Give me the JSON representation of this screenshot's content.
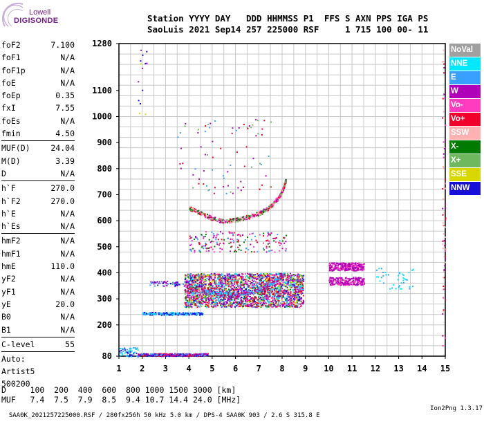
{
  "logo": {
    "line1": "Lowell",
    "line2": "DIGISONDE"
  },
  "header": {
    "line1": "Station YYYY DAY   DDD HHMMSS P1  FFS S AXN PPS IGA PS",
    "line2": "SaoLuis 2021 Sep14 257 225000 RSF     1 715 100 00- 11"
  },
  "params_group1": [
    {
      "name": "foF2",
      "value": "7.100"
    },
    {
      "name": "foF1",
      "value": "N/A"
    },
    {
      "name": "foF1p",
      "value": "N/A"
    },
    {
      "name": "foE",
      "value": "N/A"
    },
    {
      "name": "foEp",
      "value": "0.35"
    },
    {
      "name": "fxI",
      "value": "7.55"
    },
    {
      "name": "foEs",
      "value": "N/A"
    },
    {
      "name": "fmin",
      "value": "4.50"
    }
  ],
  "params_group2": [
    {
      "name": "MUF(D)",
      "value": "24.04"
    },
    {
      "name": "M(D)",
      "value": "3.39"
    },
    {
      "name": "D",
      "value": "N/A"
    }
  ],
  "params_group3": [
    {
      "name": "h`F",
      "value": "270.0"
    },
    {
      "name": "h`F2",
      "value": "270.0"
    },
    {
      "name": "h`E",
      "value": "N/A"
    },
    {
      "name": "h`Es",
      "value": "N/A"
    }
  ],
  "params_group4": [
    {
      "name": "hmF2",
      "value": "N/A"
    },
    {
      "name": "hmF1",
      "value": "N/A"
    },
    {
      "name": "hmE",
      "value": "110.0"
    },
    {
      "name": "yF2",
      "value": "N/A"
    },
    {
      "name": "yF1",
      "value": "N/A"
    },
    {
      "name": "yE",
      "value": "20.0"
    },
    {
      "name": "B0",
      "value": "N/A"
    },
    {
      "name": "B1",
      "value": "N/A"
    }
  ],
  "params_group5": [
    {
      "name": "C-level",
      "value": "55"
    }
  ],
  "autoscaling": {
    "line1": "Auto:",
    "line2": "Artist5",
    "line3": "500200"
  },
  "legend": [
    {
      "label": "NoVal",
      "color": "#a0a0a0"
    },
    {
      "label": "NNE",
      "color": "#00e8ff"
    },
    {
      "label": "E",
      "color": "#3aa0ff"
    },
    {
      "label": "W",
      "color": "#b000b8"
    },
    {
      "label": "Vo-",
      "color": "#ff3cc0"
    },
    {
      "label": "Vo+",
      "color": "#f0002a"
    },
    {
      "label": "SSW",
      "color": "#ffb0b0"
    },
    {
      "label": "X-",
      "color": "#007a00"
    },
    {
      "label": "X+",
      "color": "#70b860"
    },
    {
      "label": "SSE",
      "color": "#d8d800"
    },
    {
      "label": "NNW",
      "color": "#1810d8"
    }
  ],
  "muf_table": {
    "line1": "D     100  200  400  600  800 1000 1500 3000 [km]",
    "line2": "MUF   7.4  7.5  7.9  8.5  9.4 10.7 14.4 24.0 [MHz]"
  },
  "footer": {
    "left": "SAA0K_2021257225000.RSF / 280fx256h 50 kHz 5.0 km / DPS-4 SAA0K 903 / 2.6 S 315.8 E",
    "right": "Ion2Png 1.3.17"
  },
  "chart_data": {
    "type": "scatter",
    "title": "",
    "xlabel": "",
    "ylabel": "",
    "xlim": [
      1,
      15
    ],
    "ylim": [
      80,
      1280
    ],
    "x_ticks": [
      1,
      2,
      3,
      4,
      5,
      6,
      7,
      8,
      9,
      10,
      11,
      12,
      13,
      14,
      15
    ],
    "y_ticks": [
      80,
      200,
      300,
      400,
      500,
      600,
      700,
      800,
      900,
      1000,
      1100,
      1280
    ],
    "y_grid_step": 40,
    "x_grid_step": 0.5,
    "trace_F": [
      [
        4.0,
        650
      ],
      [
        4.5,
        630
      ],
      [
        5.0,
        610
      ],
      [
        5.5,
        600
      ],
      [
        6.0,
        605
      ],
      [
        6.5,
        615
      ],
      [
        7.0,
        630
      ],
      [
        7.4,
        650
      ],
      [
        7.7,
        675
      ],
      [
        7.9,
        700
      ],
      [
        8.05,
        730
      ],
      [
        8.15,
        760
      ]
    ],
    "trace_F_lower": [
      [
        4.5,
        335
      ],
      [
        5.0,
        325
      ],
      [
        5.5,
        320
      ],
      [
        6.0,
        318
      ],
      [
        6.5,
        325
      ],
      [
        7.0,
        335
      ],
      [
        7.5,
        360
      ],
      [
        7.9,
        385
      ],
      [
        8.1,
        400
      ]
    ],
    "spread_F": {
      "x": [
        3.8,
        8.9
      ],
      "y": [
        270,
        400
      ]
    },
    "E_layer": {
      "x": [
        1.8,
        4.8
      ],
      "y": [
        82,
        92
      ]
    },
    "Es_layer": {
      "x": [
        2.0,
        4.6
      ],
      "y": [
        240,
        250
      ]
    },
    "ticks_low_freq": {
      "x": [
        1.0,
        1.8
      ],
      "y": [
        80,
        115
      ]
    },
    "W_cluster_high": {
      "x": [
        10.0,
        11.5
      ],
      "y": [
        410,
        440
      ]
    },
    "W_cluster_low": {
      "x": [
        10.0,
        11.5
      ],
      "y": [
        355,
        385
      ]
    },
    "echo_fringe_cyan": {
      "x": [
        12.0,
        13.6
      ],
      "y": [
        340,
        420
      ]
    }
  }
}
